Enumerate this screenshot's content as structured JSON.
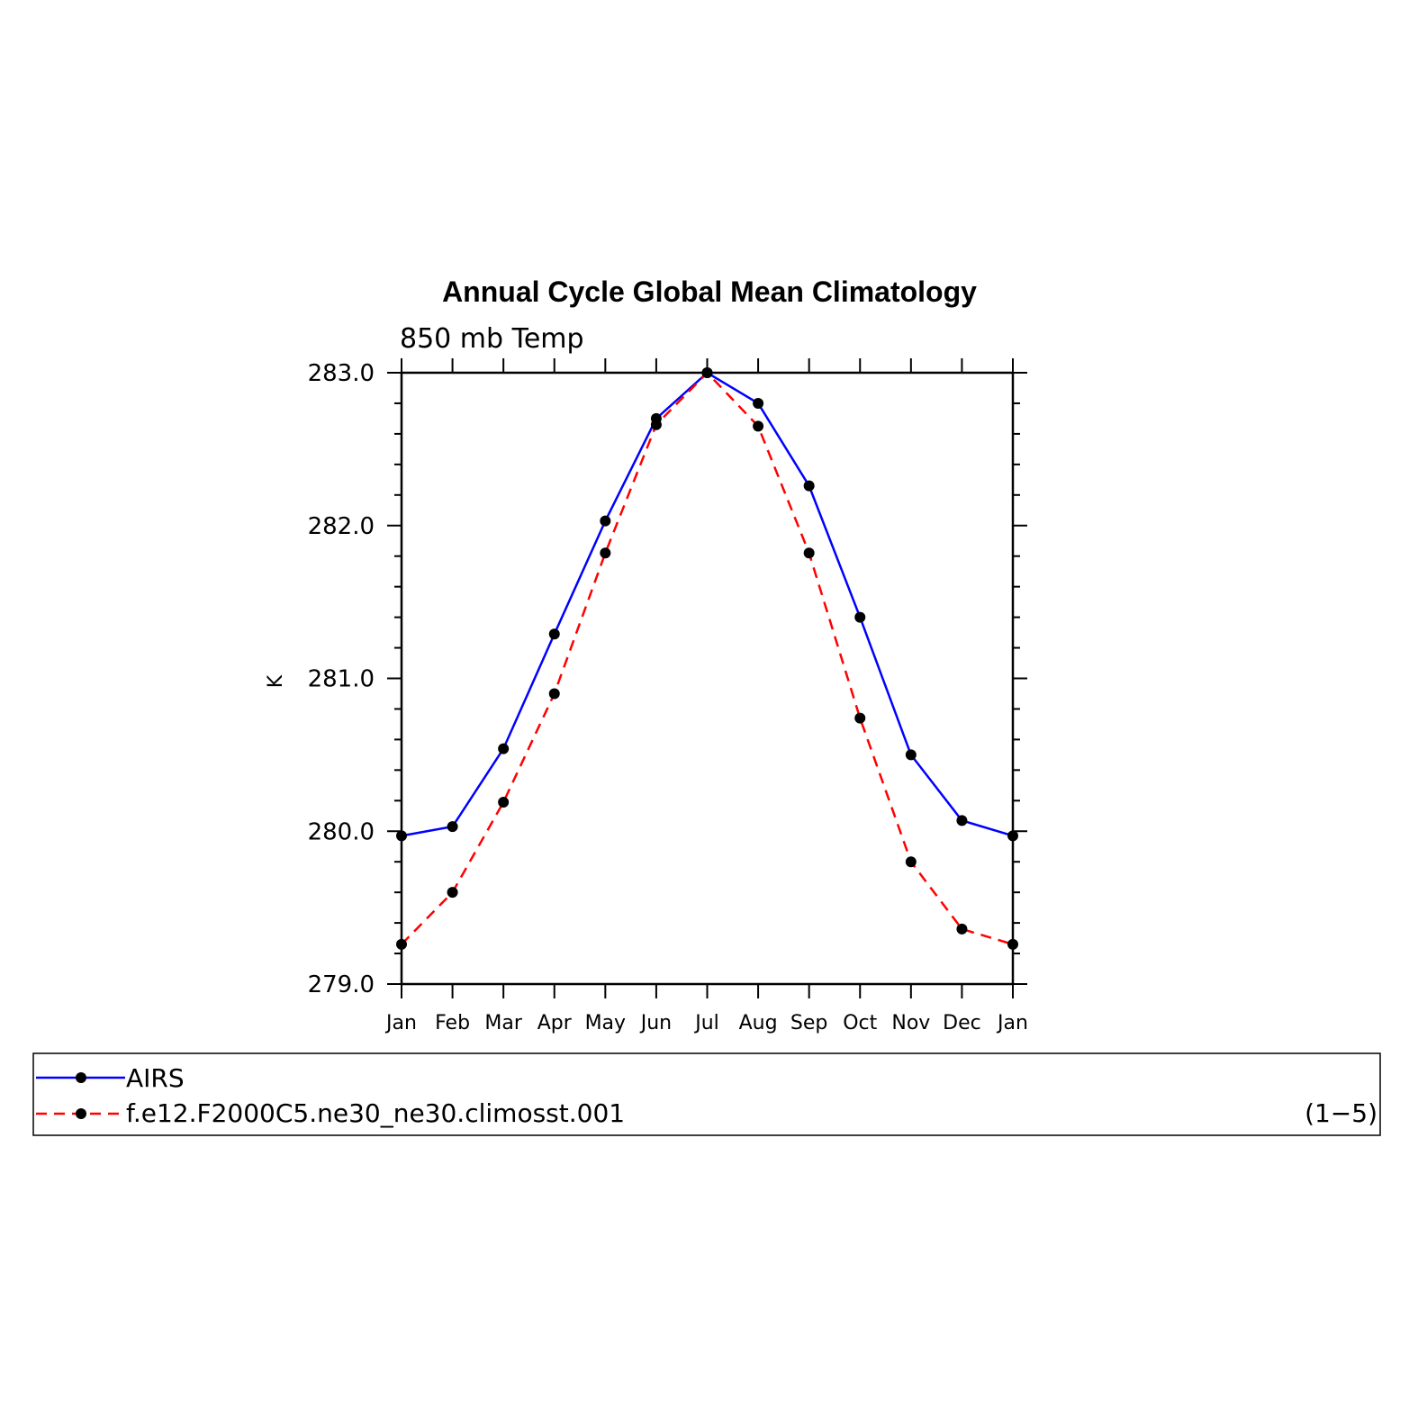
{
  "chart_data": {
    "type": "line",
    "title": "Annual Cycle Global Mean Climatology",
    "subtitle": "850 mb Temp",
    "xlabel": "",
    "ylabel": "K",
    "categories": [
      "Jan",
      "Feb",
      "Mar",
      "Apr",
      "May",
      "Jun",
      "Jul",
      "Aug",
      "Sep",
      "Oct",
      "Nov",
      "Dec",
      "Jan"
    ],
    "ylim": [
      279.0,
      283.0
    ],
    "yticks": [
      "279.0",
      "280.0",
      "281.0",
      "282.0",
      "283.0"
    ],
    "grid": false,
    "legend_position": "bottom",
    "legend_note": "(1−5)",
    "series": [
      {
        "name": "AIRS",
        "color": "#0000ff",
        "style": "solid",
        "marker": "dot",
        "values": [
          279.97,
          280.03,
          280.54,
          281.29,
          282.03,
          282.7,
          283.0,
          282.8,
          282.26,
          281.4,
          280.5,
          280.07,
          279.97
        ]
      },
      {
        "name": "f.e12.F2000C5.ne30_ne30.climosst.001",
        "color": "#ff0000",
        "style": "dashed",
        "marker": "dot",
        "values": [
          279.26,
          279.6,
          280.19,
          280.9,
          281.82,
          282.66,
          283.0,
          282.65,
          281.82,
          280.74,
          279.8,
          279.36,
          279.26
        ]
      }
    ]
  }
}
